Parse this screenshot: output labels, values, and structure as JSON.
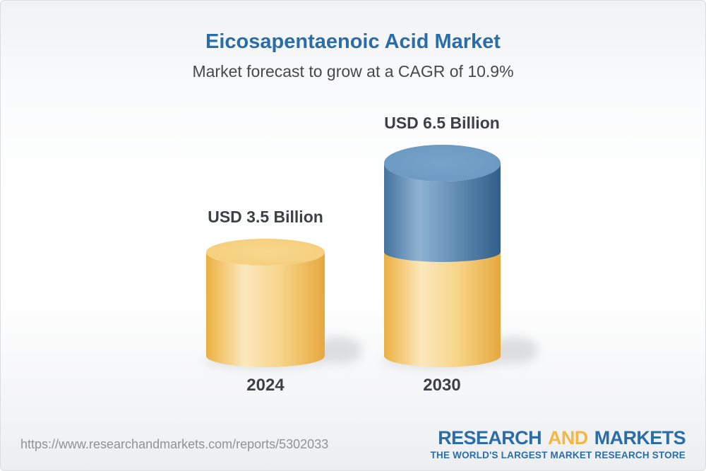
{
  "header": {
    "title": "Eicosapentaenoic Acid Market",
    "subtitle": "Market forecast to grow at a CAGR of 10.9%"
  },
  "chart_data": {
    "type": "bar",
    "title": "Eicosapentaenoic Acid Market",
    "subtitle": "Market forecast to grow at a CAGR of 10.9%",
    "cagr_percent": 10.9,
    "unit": "USD Billion",
    "categories": [
      "2024",
      "2030"
    ],
    "values": [
      3.5,
      6.5
    ],
    "value_labels": [
      "USD 3.5 Billion",
      "USD 6.5 Billion"
    ],
    "stacking_note": "2030 cylinder = gold base equal to 2024 value (3.5) plus blue growth segment up to 6.5",
    "ylim": [
      0,
      6.5
    ],
    "grid": false,
    "legend": false,
    "colors": {
      "bar_gold": "#F2C363",
      "bar_blue": "#5587B0",
      "label_text": "#3D4145"
    }
  },
  "footer": {
    "url": "https://www.researchandmarkets.com/reports/5302033",
    "logo": {
      "word1": "RESEARCH",
      "word2": "AND",
      "word3": "MARKETS",
      "tagline": "THE WORLD'S LARGEST MARKET RESEARCH STORE",
      "blue": "#2C6DA7",
      "yellow": "#F2B843"
    }
  },
  "theme": {
    "title_blue": "#2B6DA6",
    "subtitle_gray": "#45494E",
    "url_gray": "#8F9398",
    "background_top": "#F1F2F4",
    "background_bottom": "#EDEEF0"
  }
}
